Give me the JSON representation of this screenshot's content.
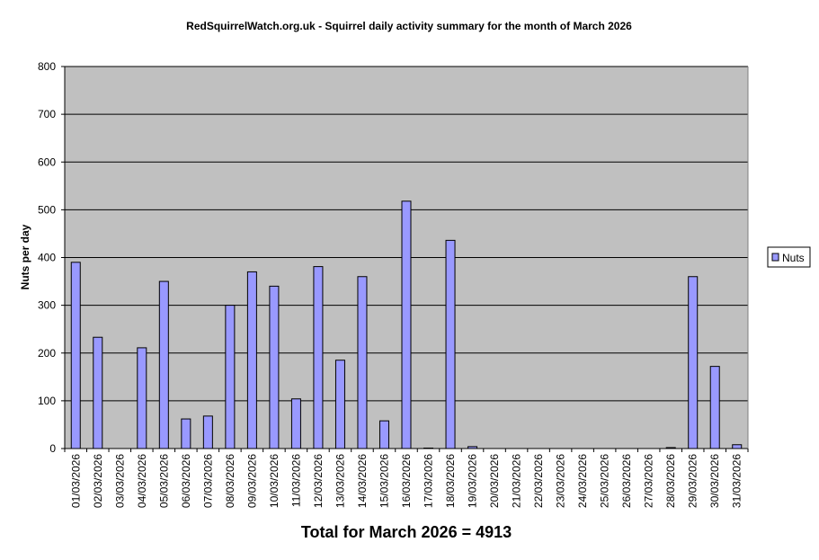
{
  "chart_data": {
    "type": "bar",
    "title": "RedSquirrelWatch.org.uk - Squirrel daily activity summary for the month of March 2026",
    "xlabel": "Total for March 2026 = 4913",
    "ylabel": "Nuts per day",
    "ylim": [
      0,
      800
    ],
    "yticks": [
      0,
      100,
      200,
      300,
      400,
      500,
      600,
      700,
      800
    ],
    "grid": true,
    "legend_position": "right",
    "plot_background": "#c0c0c0",
    "bar_color": "#9999ff",
    "categories": [
      "01/03/2026",
      "02/03/2026",
      "03/03/2026",
      "04/03/2026",
      "05/03/2026",
      "06/03/2026",
      "07/03/2026",
      "08/03/2026",
      "09/03/2026",
      "10/03/2026",
      "11/03/2026",
      "12/03/2026",
      "13/03/2026",
      "14/03/2026",
      "15/03/2026",
      "16/03/2026",
      "17/03/2026",
      "18/03/2026",
      "19/03/2026",
      "20/03/2026",
      "21/03/2026",
      "22/03/2026",
      "23/03/2026",
      "24/03/2026",
      "25/03/2026",
      "26/03/2026",
      "27/03/2026",
      "28/03/2026",
      "29/03/2026",
      "30/03/2026",
      "31/03/2026"
    ],
    "series": [
      {
        "name": "Nuts",
        "values": [
          390,
          233,
          0,
          211,
          350,
          62,
          68,
          300,
          370,
          340,
          104,
          381,
          185,
          360,
          58,
          518,
          1,
          436,
          4,
          0,
          0,
          0,
          0,
          0,
          0,
          0,
          0,
          2,
          360,
          172,
          8
        ]
      }
    ]
  }
}
